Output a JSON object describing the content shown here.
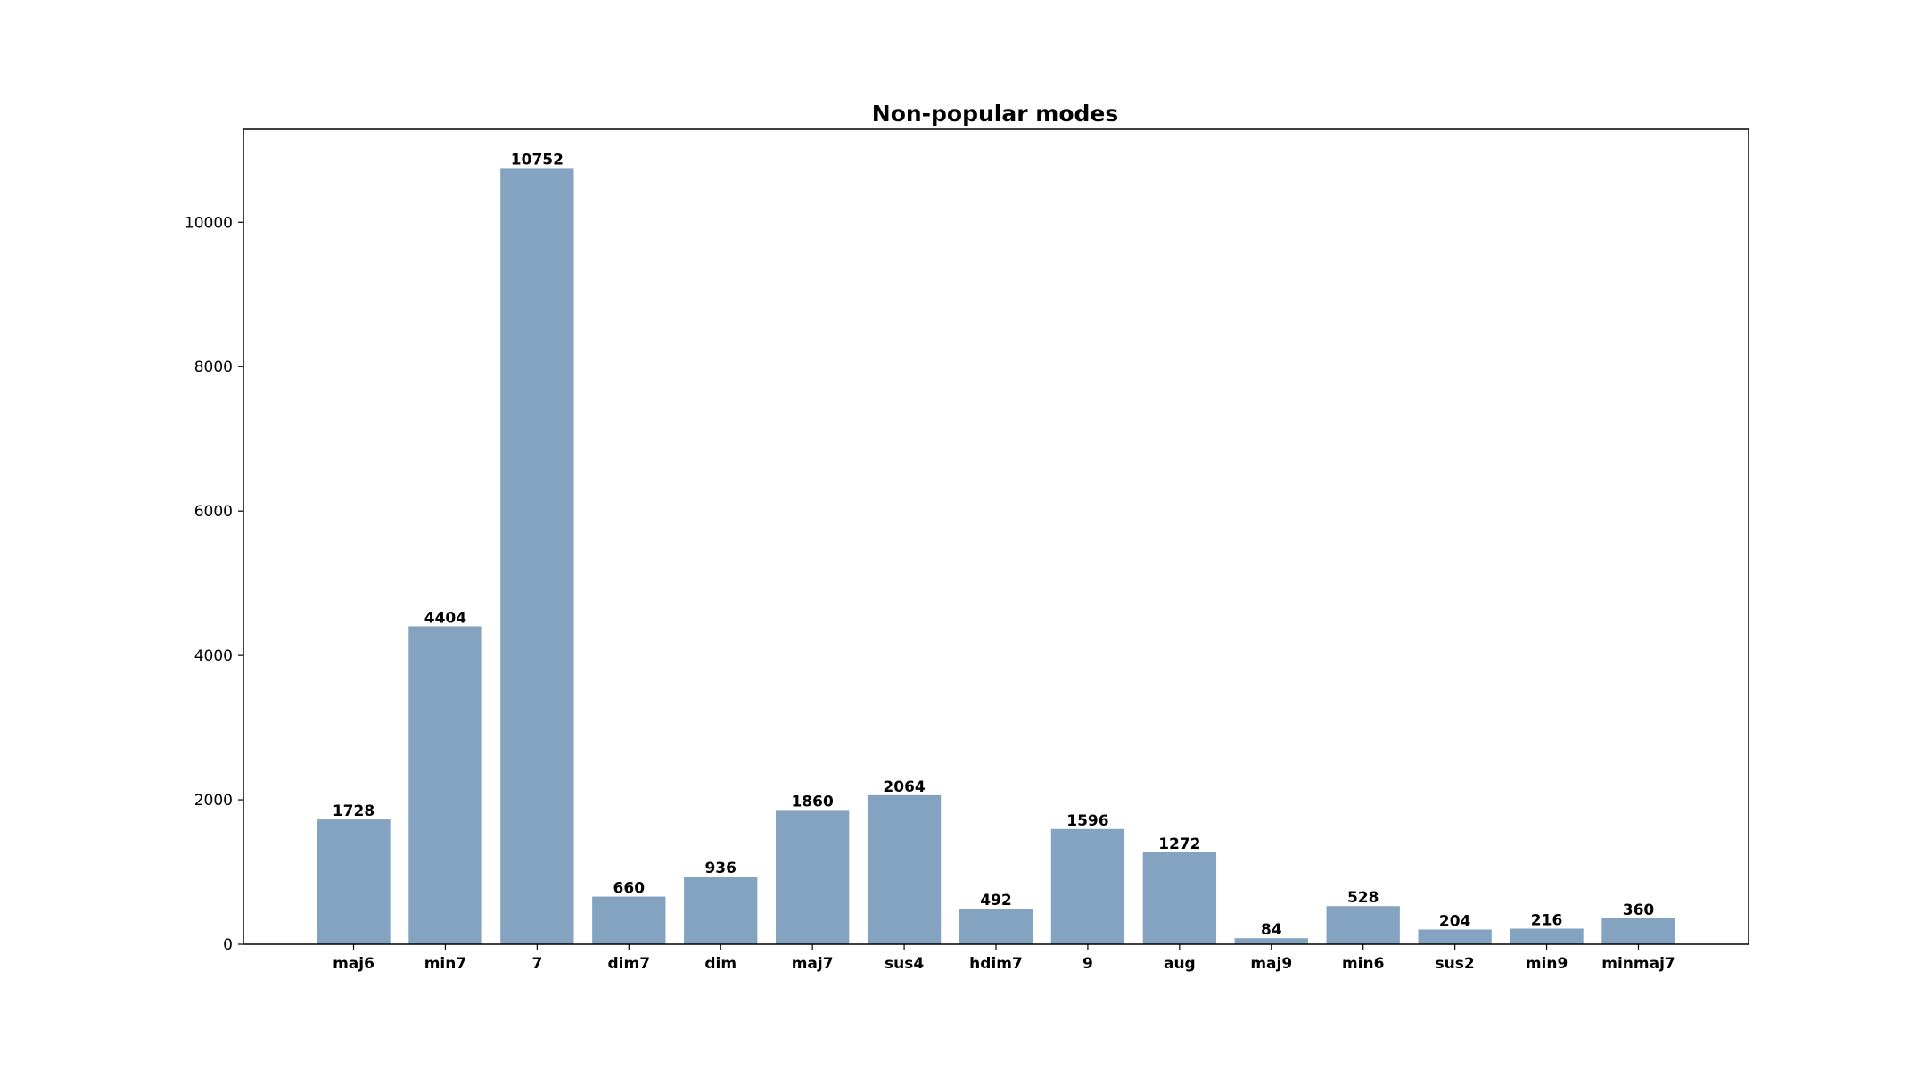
{
  "chart_data": {
    "type": "bar",
    "title": "Non-popular modes",
    "xlabel": "",
    "ylabel": "",
    "categories": [
      "maj6",
      "min7",
      "7",
      "dim7",
      "dim",
      "maj7",
      "sus4",
      "hdim7",
      "9",
      "aug",
      "maj9",
      "min6",
      "sus2",
      "min9",
      "minmaj7"
    ],
    "values": [
      1728,
      4404,
      10752,
      660,
      936,
      1860,
      2064,
      492,
      1596,
      1272,
      84,
      528,
      204,
      216,
      360
    ],
    "ylim": [
      0,
      11288
    ],
    "yticks": [
      0,
      2000,
      4000,
      6000,
      8000,
      10000
    ],
    "grid": false,
    "legend": "none",
    "bar_color": "#84a3c1",
    "show_value_labels": true
  }
}
